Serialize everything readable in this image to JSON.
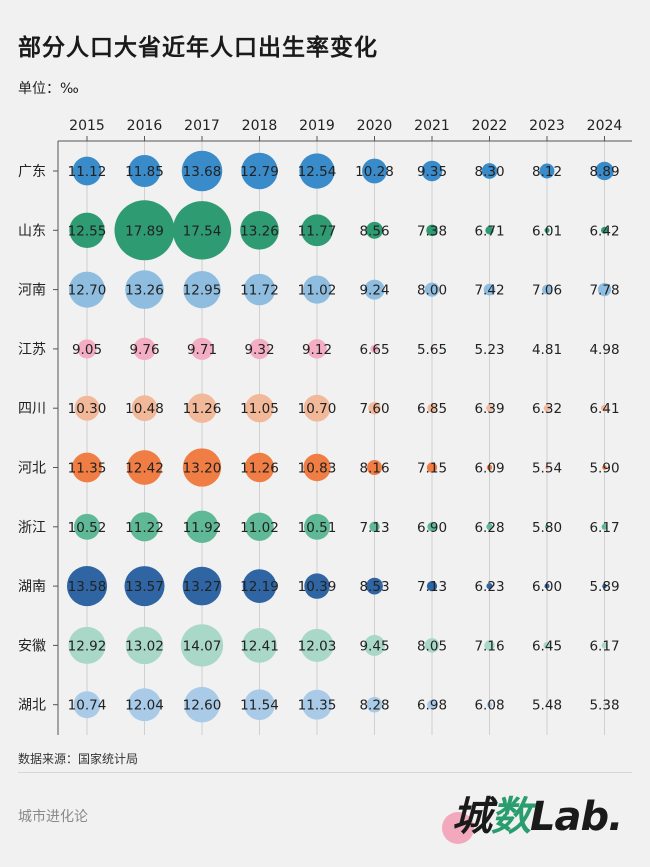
{
  "title": "部分人口大省近年人口出生率变化",
  "unit_label": "单位：‰",
  "source": "数据来源：国家统计局",
  "brand": "城市进化论",
  "logo": {
    "prefix": "城",
    "accent": "数",
    "suffix": "Lab."
  },
  "chart_data": {
    "type": "bubble-matrix",
    "x": [
      "2015",
      "2016",
      "2017",
      "2018",
      "2019",
      "2020",
      "2021",
      "2022",
      "2023",
      "2024"
    ],
    "series": [
      {
        "name": "广东",
        "color": "#3a8bc9",
        "values": [
          11.12,
          11.85,
          13.68,
          12.79,
          12.54,
          10.28,
          9.35,
          8.3,
          8.12,
          8.89
        ]
      },
      {
        "name": "山东",
        "color": "#2e9b72",
        "values": [
          12.55,
          17.89,
          17.54,
          13.26,
          11.77,
          8.56,
          7.38,
          6.71,
          6.01,
          6.42
        ]
      },
      {
        "name": "河南",
        "color": "#8fbde0",
        "values": [
          12.7,
          13.26,
          12.95,
          11.72,
          11.02,
          9.24,
          8.0,
          7.42,
          7.06,
          7.78
        ]
      },
      {
        "name": "江苏",
        "color": "#f4aec4",
        "values": [
          9.05,
          9.76,
          9.71,
          9.32,
          9.12,
          6.65,
          5.65,
          5.23,
          4.81,
          4.98
        ]
      },
      {
        "name": "四川",
        "color": "#f2b89a",
        "values": [
          10.3,
          10.48,
          11.26,
          11.05,
          10.7,
          7.6,
          6.85,
          6.39,
          6.32,
          6.41
        ]
      },
      {
        "name": "河北",
        "color": "#ef7d44",
        "values": [
          11.35,
          12.42,
          13.2,
          11.26,
          10.83,
          8.16,
          7.15,
          6.09,
          5.54,
          5.9
        ]
      },
      {
        "name": "浙江",
        "color": "#5fb996",
        "values": [
          10.52,
          11.22,
          11.92,
          11.02,
          10.51,
          7.13,
          6.9,
          6.28,
          5.8,
          6.17
        ]
      },
      {
        "name": "湖南",
        "color": "#2f65a3",
        "values": [
          13.58,
          13.57,
          13.27,
          12.19,
          10.39,
          8.53,
          7.13,
          6.23,
          6.0,
          5.89
        ]
      },
      {
        "name": "安徽",
        "color": "#a9d8c8",
        "values": [
          12.92,
          13.02,
          14.07,
          12.41,
          12.03,
          9.45,
          8.05,
          7.16,
          6.45,
          6.17
        ]
      },
      {
        "name": "湖北",
        "color": "#a9cbe8",
        "values": [
          10.74,
          12.04,
          12.6,
          11.54,
          11.35,
          8.28,
          6.98,
          6.08,
          5.48,
          5.38
        ]
      }
    ],
    "size_threshold": 4.9,
    "size_max": 17.89
  }
}
